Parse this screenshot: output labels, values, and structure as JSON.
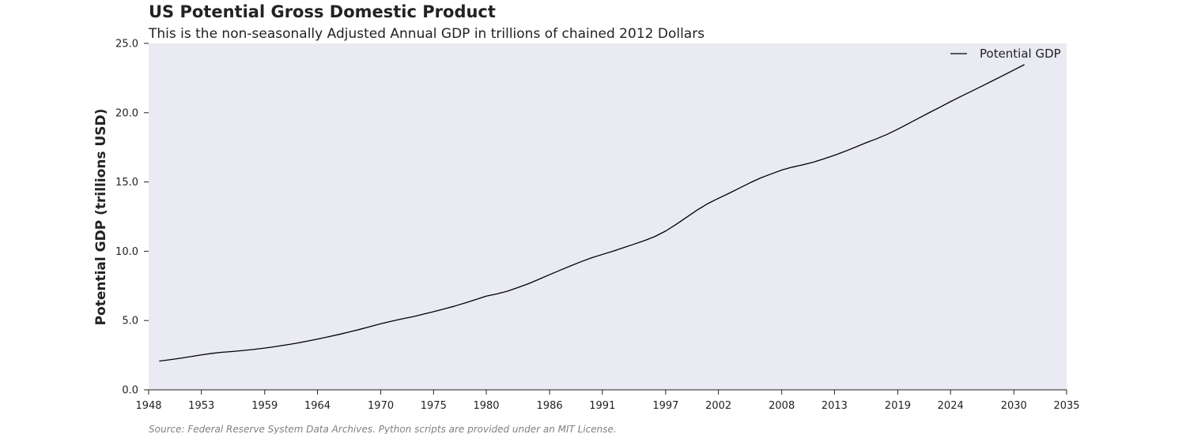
{
  "chart_data": {
    "type": "line",
    "title": "US Potential Gross Domestic Product",
    "subtitle": "This is the non-seasonally Adjusted Annual GDP in trillions of chained 2012 Dollars",
    "xlabel": "",
    "ylabel": "Potential GDP (trillions USD)",
    "xlim": [
      1948,
      2035
    ],
    "ylim": [
      0,
      25
    ],
    "x_ticks": [
      "1948",
      "1953",
      "1959",
      "1964",
      "1970",
      "1975",
      "1980",
      "1986",
      "1991",
      "1997",
      "2002",
      "2008",
      "2013",
      "2019",
      "2024",
      "2030",
      "2035"
    ],
    "y_ticks": [
      "0.0",
      "5.0",
      "10.0",
      "15.0",
      "20.0",
      "25.0"
    ],
    "grid": false,
    "background": "#e9eaf2",
    "legend": {
      "position": "top-right"
    },
    "source": "Source: Federal Reserve System Data Archives. Python scripts are provided under an MIT License.",
    "series": [
      {
        "name": "Potential GDP",
        "color": "#000000",
        "x": [
          1949,
          1950,
          1951,
          1952,
          1953,
          1954,
          1955,
          1956,
          1957,
          1958,
          1959,
          1960,
          1961,
          1962,
          1963,
          1964,
          1965,
          1966,
          1967,
          1968,
          1969,
          1970,
          1971,
          1972,
          1973,
          1974,
          1975,
          1976,
          1977,
          1978,
          1979,
          1980,
          1981,
          1982,
          1983,
          1984,
          1985,
          1986,
          1987,
          1988,
          1989,
          1990,
          1991,
          1992,
          1993,
          1994,
          1995,
          1996,
          1997,
          1998,
          1999,
          2000,
          2001,
          2002,
          2003,
          2004,
          2005,
          2006,
          2007,
          2008,
          2009,
          2010,
          2011,
          2012,
          2013,
          2014,
          2015,
          2016,
          2017,
          2018,
          2019,
          2020,
          2021,
          2022,
          2023,
          2024,
          2025,
          2026,
          2027,
          2028,
          2029,
          2030,
          2031
        ],
        "values": [
          2.07,
          2.17,
          2.28,
          2.4,
          2.52,
          2.63,
          2.71,
          2.77,
          2.84,
          2.92,
          3.01,
          3.12,
          3.24,
          3.36,
          3.51,
          3.66,
          3.82,
          3.99,
          4.17,
          4.36,
          4.56,
          4.77,
          4.95,
          5.12,
          5.27,
          5.45,
          5.64,
          5.84,
          6.04,
          6.27,
          6.51,
          6.76,
          6.92,
          7.12,
          7.38,
          7.66,
          7.98,
          8.31,
          8.63,
          8.95,
          9.25,
          9.53,
          9.77,
          10.0,
          10.26,
          10.51,
          10.77,
          11.07,
          11.46,
          11.94,
          12.46,
          12.98,
          13.44,
          13.82,
          14.18,
          14.56,
          14.94,
          15.29,
          15.58,
          15.86,
          16.07,
          16.24,
          16.43,
          16.67,
          16.93,
          17.21,
          17.52,
          17.83,
          18.12,
          18.44,
          18.81,
          19.21,
          19.61,
          20.01,
          20.4,
          20.8,
          21.18,
          21.55,
          21.93,
          22.31,
          22.69,
          23.08,
          23.47
        ]
      }
    ]
  }
}
